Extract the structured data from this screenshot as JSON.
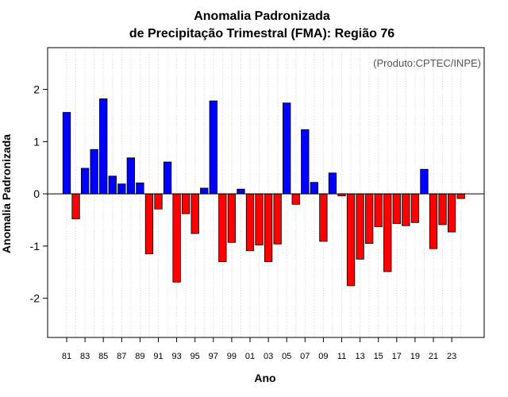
{
  "chart_data": {
    "type": "bar",
    "title": [
      "Anomalia Padronizada",
      "de Precipitação Trimestral (FMA): Região 76"
    ],
    "xlabel": "Ano",
    "ylabel": "Anomalia Padronizada",
    "annotation": "(Produto:CPTEC/INPE)",
    "ylim": [
      -2.75,
      2.8
    ],
    "yticks": [
      -2,
      -1,
      0,
      1,
      2
    ],
    "ytick_labels": [
      "-2",
      "-1",
      "0",
      "1",
      "2"
    ],
    "categories": [
      "81",
      "82",
      "83",
      "84",
      "85",
      "86",
      "87",
      "88",
      "89",
      "90",
      "91",
      "92",
      "93",
      "94",
      "95",
      "96",
      "97",
      "98",
      "99",
      "00",
      "01",
      "02",
      "03",
      "04",
      "05",
      "06",
      "07",
      "08",
      "09",
      "10",
      "11",
      "12",
      "13",
      "14",
      "15",
      "16",
      "17",
      "18",
      "19",
      "20",
      "21",
      "22",
      "23",
      "24"
    ],
    "xtick_labels": [
      "81",
      "83",
      "85",
      "87",
      "89",
      "91",
      "93",
      "95",
      "97",
      "99",
      "01",
      "03",
      "05",
      "07",
      "09",
      "11",
      "13",
      "15",
      "17",
      "19",
      "21",
      "23"
    ],
    "values": [
      1.56,
      -0.48,
      0.49,
      0.85,
      1.82,
      0.34,
      0.19,
      0.69,
      0.21,
      -1.15,
      -0.29,
      0.61,
      -1.69,
      -0.38,
      -0.76,
      0.11,
      1.78,
      -1.3,
      -0.93,
      0.09,
      -1.09,
      -0.98,
      -1.3,
      -0.96,
      1.74,
      -0.2,
      1.23,
      0.22,
      -0.91,
      0.4,
      -0.04,
      -1.76,
      -1.25,
      -0.95,
      -0.63,
      -1.49,
      -0.57,
      -0.61,
      -0.55,
      0.47,
      -1.05,
      -0.59,
      -0.73,
      -0.09
    ],
    "positive_color": "#0000ff",
    "negative_color": "#ff0000",
    "grid": true
  }
}
